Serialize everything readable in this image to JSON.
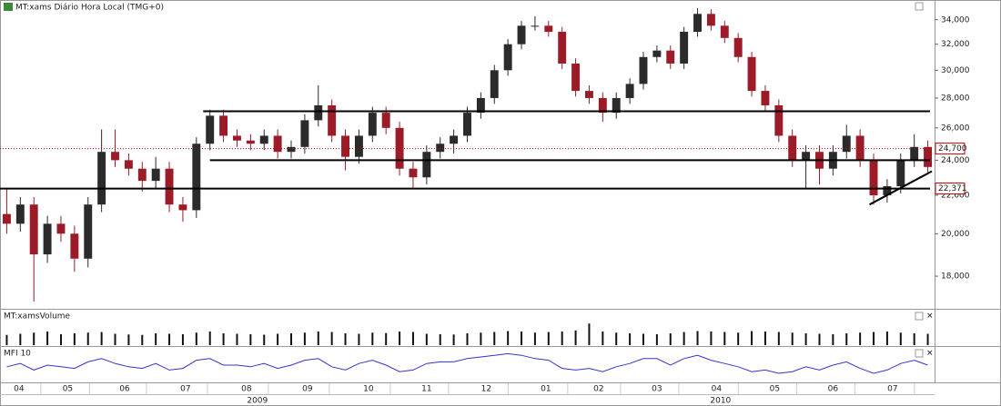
{
  "chart_data": {
    "type": "candlestick",
    "title": "MT:xams Diário Hora Local (TMG+0)",
    "log_scale": true,
    "ylim": [
      16600,
      34600
    ],
    "yticks": [
      {
        "value": 18000,
        "label": "18,000"
      },
      {
        "value": 20000,
        "label": "20,000"
      },
      {
        "value": 22000,
        "label": "22,000"
      },
      {
        "value": 24000,
        "label": "24,000"
      },
      {
        "value": 26000,
        "label": "26,000"
      },
      {
        "value": 28000,
        "label": "28,000"
      },
      {
        "value": 30000,
        "label": "30,000"
      },
      {
        "value": 32000,
        "label": "32,000"
      },
      {
        "value": 34000,
        "label": "34,000"
      }
    ],
    "xlim": [
      -0.5,
      68.5
    ],
    "xticks": [
      {
        "value": 0.9,
        "label": "04"
      },
      {
        "value": 4.5,
        "label": "05"
      },
      {
        "value": 8.7,
        "label": "06"
      },
      {
        "value": 13.2,
        "label": "07"
      },
      {
        "value": 17.7,
        "label": "08"
      },
      {
        "value": 22.2,
        "label": "09"
      },
      {
        "value": 26.7,
        "label": "10"
      },
      {
        "value": 31,
        "label": "11"
      },
      {
        "value": 35.4,
        "label": "12"
      },
      {
        "value": 39.8,
        "label": "01"
      },
      {
        "value": 43.7,
        "label": "02"
      },
      {
        "value": 48,
        "label": "03"
      },
      {
        "value": 52.4,
        "label": "04"
      },
      {
        "value": 56.7,
        "label": "05"
      },
      {
        "value": 61,
        "label": "06"
      },
      {
        "value": 65.4,
        "label": "07"
      }
    ],
    "years": [
      {
        "value": 18.5,
        "label": "2009"
      },
      {
        "value": 52.7,
        "label": "2010"
      }
    ],
    "up_color": "#2b2b2b",
    "down_color": "#9b1c28",
    "open": [
      21000,
      20500,
      21500,
      19000,
      20500,
      20000,
      18800,
      21500,
      24500,
      24000,
      23500,
      22800,
      23500,
      21500,
      21200,
      25000,
      26800,
      25500,
      25200,
      25000,
      25500,
      24500,
      24800,
      26500,
      27500,
      25500,
      24200,
      25500,
      27000,
      26000,
      23500,
      23000,
      24500,
      25000,
      25500,
      27000,
      28000,
      30000,
      32000,
      33500,
      33500,
      33000,
      30500,
      28500,
      28000,
      27000,
      28000,
      29000,
      31000,
      31500,
      30500,
      33000,
      34500,
      33500,
      32500,
      31000,
      28500,
      27500,
      25500,
      24000,
      24500,
      23500,
      24500,
      25500,
      24000,
      22000,
      22500,
      24000,
      24800
    ],
    "high": [
      22400,
      21900,
      21900,
      20900,
      20900,
      20400,
      21900,
      25900,
      25900,
      24400,
      23900,
      24200,
      23900,
      21900,
      25400,
      27200,
      27200,
      25900,
      25600,
      25900,
      25900,
      25200,
      26900,
      28900,
      27900,
      25900,
      25900,
      27400,
      27400,
      26400,
      23900,
      24900,
      25400,
      25900,
      27400,
      28400,
      30400,
      32400,
      33900,
      34300,
      33900,
      33400,
      30900,
      28900,
      28400,
      28400,
      29400,
      31400,
      31900,
      31900,
      33400,
      35000,
      34900,
      33900,
      32900,
      31400,
      28900,
      27900,
      25900,
      24900,
      24900,
      24900,
      26200,
      25900,
      24400,
      22900,
      24400,
      25600,
      25200
    ],
    "low": [
      20000,
      20100,
      16900,
      18600,
      19600,
      18200,
      18400,
      21100,
      23600,
      23100,
      22200,
      22400,
      21100,
      20600,
      20800,
      24600,
      25100,
      24800,
      24600,
      24600,
      24100,
      24100,
      24400,
      26100,
      25100,
      23400,
      23800,
      25100,
      25600,
      23100,
      22400,
      22600,
      24100,
      24400,
      25100,
      26600,
      27600,
      29600,
      31600,
      33100,
      32600,
      30100,
      28100,
      27600,
      26400,
      26600,
      27600,
      28600,
      30600,
      30100,
      30100,
      32600,
      33100,
      32100,
      30600,
      28100,
      27100,
      25100,
      23600,
      22400,
      22600,
      23100,
      24100,
      23600,
      21500,
      21600,
      22100,
      23600,
      23300
    ],
    "close": [
      20500,
      21500,
      19000,
      20500,
      20000,
      18800,
      21500,
      24500,
      24000,
      23500,
      22800,
      23500,
      21500,
      21200,
      25000,
      26800,
      25500,
      25200,
      25000,
      25500,
      24500,
      24800,
      26500,
      27500,
      25500,
      24200,
      25500,
      27000,
      26000,
      23500,
      23000,
      24500,
      25000,
      25500,
      27000,
      28000,
      30000,
      32000,
      33500,
      33500,
      33000,
      30500,
      28500,
      28000,
      27000,
      28000,
      29000,
      31000,
      31500,
      30500,
      33000,
      34500,
      33500,
      32500,
      31000,
      28500,
      27500,
      25500,
      24000,
      24500,
      23500,
      24500,
      25500,
      24000,
      22000,
      22500,
      24000,
      24800,
      23600
    ],
    "levels": [
      {
        "value": 27100,
        "start": 14.5,
        "color": "#000000"
      },
      {
        "value": 24000,
        "start": 15,
        "color": "#000000"
      },
      {
        "value": 22371,
        "start": -0.5,
        "color": "#000000",
        "label": "22,371"
      },
      {
        "value": 24700,
        "start": -0.5,
        "color": "#c00000",
        "dotted": true,
        "label": "24,700"
      }
    ],
    "trendline": [
      [
        63.7,
        21500
      ],
      [
        68.3,
        23350
      ]
    ],
    "volume": {
      "title": "MT:xamsVolume",
      "color": "#111111",
      "ylim": [
        0,
        100
      ],
      "values": [
        45,
        50,
        55,
        60,
        48,
        52,
        55,
        58,
        50,
        47,
        45,
        52,
        50,
        48,
        55,
        60,
        52,
        50,
        48,
        46,
        50,
        52,
        55,
        60,
        58,
        52,
        50,
        55,
        53,
        60,
        58,
        50,
        48,
        47,
        52,
        55,
        58,
        62,
        60,
        55,
        58,
        60,
        65,
        95,
        60,
        55,
        52,
        50,
        48,
        52,
        58,
        62,
        60,
        58,
        55,
        62,
        60,
        58,
        55,
        52,
        50,
        48,
        52,
        55,
        58,
        60,
        55,
        52,
        50
      ]
    },
    "mfi": {
      "title": "MFI 10",
      "color": "#3333cc",
      "ylim": [
        0,
        100
      ],
      "values": [
        45,
        55,
        35,
        50,
        45,
        40,
        60,
        70,
        55,
        45,
        40,
        55,
        35,
        40,
        65,
        70,
        50,
        50,
        45,
        55,
        40,
        50,
        65,
        70,
        45,
        35,
        55,
        65,
        50,
        30,
        35,
        55,
        60,
        60,
        70,
        75,
        80,
        85,
        80,
        70,
        65,
        40,
        35,
        40,
        30,
        45,
        55,
        70,
        70,
        50,
        70,
        80,
        65,
        55,
        45,
        30,
        35,
        25,
        30,
        45,
        35,
        50,
        60,
        40,
        25,
        35,
        55,
        65,
        50
      ]
    }
  }
}
